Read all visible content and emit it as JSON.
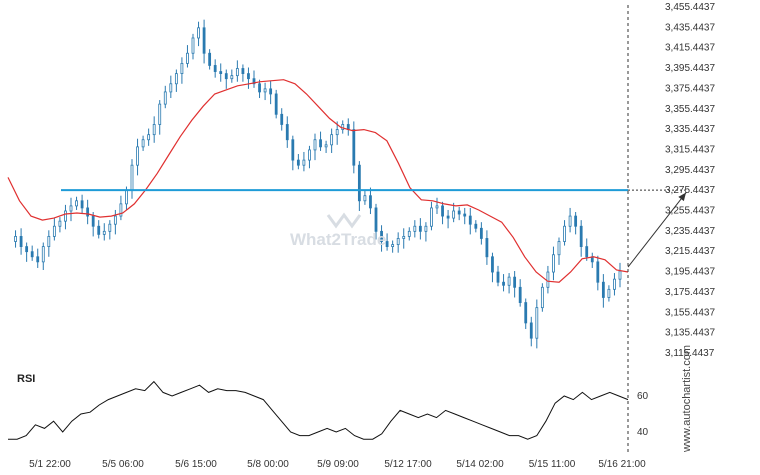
{
  "chart_data": {
    "type": "candlestick",
    "price_axis": {
      "ticks": [
        "3,455.4437",
        "3,435.4437",
        "3,415.4437",
        "3,395.4437",
        "3,375.4437",
        "3,355.4437",
        "3,335.4437",
        "3,315.4437",
        "3,295.4437",
        "3,275.4437",
        "3,255.4437",
        "3,235.4437",
        "3,215.4437",
        "3,195.4437",
        "3,175.4437",
        "3,155.4437",
        "3,135.4437",
        "3,115.4437"
      ],
      "min": 3115.4437,
      "max": 3455.4437
    },
    "x_axis": {
      "ticks": [
        "5/1 22:00",
        "5/5 06:00",
        "5/6 15:00",
        "5/8 00:00",
        "5/9 09:00",
        "5/12 17:00",
        "5/14 02:00",
        "5/15 11:00",
        "5/16 21:00"
      ]
    },
    "resistance_level": 3275.4437,
    "forecast_target": 3273,
    "close_series": [
      3225,
      3230,
      3220,
      3215,
      3210,
      3205,
      3220,
      3230,
      3240,
      3245,
      3255,
      3260,
      3265,
      3258,
      3250,
      3240,
      3232,
      3235,
      3242,
      3250,
      3262,
      3275,
      3300,
      3318,
      3325,
      3330,
      3340,
      3360,
      3372,
      3380,
      3390,
      3400,
      3410,
      3425,
      3435,
      3410,
      3398,
      3392,
      3390,
      3385,
      3388,
      3395,
      3390,
      3385,
      3380,
      3372,
      3375,
      3370,
      3350,
      3340,
      3325,
      3305,
      3300,
      3305,
      3315,
      3325,
      3318,
      3320,
      3330,
      3335,
      3340,
      3335,
      3300,
      3265,
      3270,
      3258,
      3235,
      3225,
      3220,
      3222,
      3228,
      3230,
      3235,
      3240,
      3235,
      3240,
      3258,
      3260,
      3250,
      3248,
      3255,
      3252,
      3250,
      3242,
      3238,
      3228,
      3210,
      3195,
      3185,
      3182,
      3190,
      3180,
      3165,
      3145,
      3130,
      3160,
      3180,
      3195,
      3212,
      3225,
      3240,
      3250,
      3240,
      3220,
      3210,
      3205,
      3185,
      3170,
      3178,
      3188,
      3196
    ],
    "ma_series": [
      3288,
      3265,
      3250,
      3246,
      3248,
      3252,
      3253,
      3252,
      3249,
      3250,
      3253,
      3262,
      3276,
      3292,
      3310,
      3328,
      3344,
      3358,
      3370,
      3374,
      3378,
      3380,
      3382,
      3383,
      3384,
      3380,
      3370,
      3358,
      3346,
      3337,
      3334,
      3335,
      3332,
      3324,
      3302,
      3278,
      3266,
      3265,
      3262,
      3260,
      3261,
      3256,
      3250,
      3244,
      3229,
      3210,
      3195,
      3186,
      3185,
      3195,
      3208,
      3210,
      3207,
      3197,
      3195
    ],
    "rsi": {
      "title": "RSI",
      "ticks": [
        "60",
        "40"
      ],
      "min": 30,
      "max": 70,
      "values": [
        36,
        36,
        38,
        44,
        42,
        46,
        40,
        46,
        50,
        51,
        55,
        58,
        60,
        62,
        64,
        63,
        68,
        62,
        60,
        62,
        64,
        66,
        62,
        64,
        63,
        63,
        62,
        60,
        58,
        52,
        46,
        40,
        38,
        38,
        40,
        42,
        40,
        42,
        38,
        36,
        36,
        39,
        46,
        52,
        50,
        48,
        50,
        48,
        52,
        50,
        48,
        46,
        44,
        42,
        40,
        38,
        38,
        36,
        38,
        46,
        56,
        60,
        58,
        62,
        58,
        60,
        62,
        60,
        58
      ]
    }
  },
  "watermark": {
    "brand": "What2Trade",
    "site": "www.autochartist.com"
  },
  "colors": {
    "background": "#ffffff",
    "candle": "#2a7ab0",
    "moving_average": "#e03030",
    "resistance": "#1e9bd7",
    "forecast_arrow": "#333333",
    "rsi_line": "#111111"
  }
}
